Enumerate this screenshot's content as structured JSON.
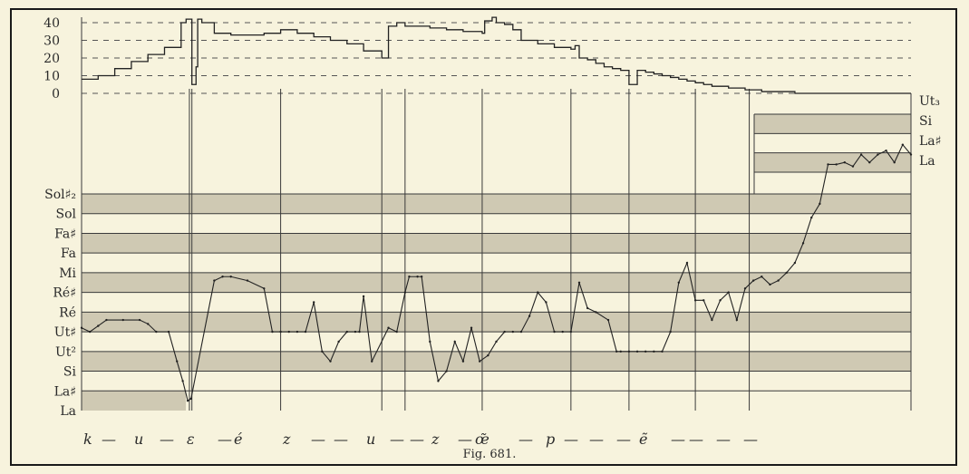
{
  "chart_data": {
    "type": "line",
    "caption": "Fig. 681.",
    "intensity_axis": {
      "ticks": [
        "40",
        "30",
        "20",
        "10",
        "0"
      ]
    },
    "pitch_axis_left": [
      "Sol♯₂",
      "Sol",
      "Fa♯",
      "Fa",
      "Mi",
      "Ré♯",
      "Ré",
      "Ut♯",
      "Ut²",
      "Si",
      "La♯",
      "La"
    ],
    "pitch_axis_right": [
      "Ut₃",
      "Si",
      "La♯",
      "La"
    ],
    "phonemes": [
      "k",
      "—",
      "u",
      "—",
      "ɛ",
      "—",
      "é",
      "z",
      "—",
      "—",
      "u",
      "—",
      "—",
      "z",
      "—",
      "œ̃",
      "—",
      "p",
      "—",
      "—",
      "—",
      "ẽ",
      "—",
      "—",
      "—",
      "—"
    ],
    "segment_boundaries": [
      0.0,
      13.0,
      13.3,
      24.0,
      36.2,
      39.0,
      48.3,
      59.0,
      66.0,
      74.0,
      80.5,
      100.0
    ],
    "intensity_series": {
      "name": "",
      "x": [
        0.0,
        2.0,
        4.0,
        6.0,
        8.0,
        10.0,
        12.0,
        12.6,
        13.0,
        13.3,
        13.8,
        14.0,
        14.5,
        16.0,
        18.0,
        20.0,
        22.0,
        24.0,
        26.0,
        28.0,
        30.0,
        32.0,
        34.0,
        36.2,
        37.0,
        38.0,
        39.0,
        40.0,
        42.0,
        44.0,
        46.0,
        48.3,
        48.6,
        49.5,
        50.0,
        51.0,
        52.0,
        53.0,
        55.0,
        57.0,
        59.0,
        59.5,
        60.0,
        61.0,
        62.0,
        63.0,
        64.0,
        65.0,
        66.0,
        67.0,
        68.0,
        69.0,
        70.0,
        71.0,
        72.0,
        73.0,
        74.0,
        75.0,
        76.0,
        78.0,
        80.0,
        82.0,
        84.0,
        86.0,
        88.0,
        90.0,
        92.0,
        94.0,
        96.0,
        98.0,
        100.0
      ],
      "y": [
        8,
        10,
        14,
        18,
        22,
        26,
        40,
        42,
        42,
        5,
        15,
        42,
        40,
        34,
        33,
        33,
        34,
        36,
        34,
        32,
        30,
        28,
        24,
        20,
        38,
        40,
        38,
        38,
        37,
        36,
        35,
        34,
        41,
        43,
        40,
        39,
        36,
        30,
        28,
        26,
        25,
        27,
        20,
        19,
        17,
        15,
        14,
        13,
        5,
        13,
        12,
        11,
        10,
        9,
        8,
        7,
        6,
        5,
        4,
        3,
        2,
        1,
        1,
        0,
        0,
        0,
        0,
        0,
        0,
        0,
        0
      ]
    },
    "pitch_series": {
      "name": "",
      "x": [
        0.0,
        1.0,
        2.0,
        3.0,
        5.0,
        7.0,
        8.0,
        9.0,
        10.5,
        11.5,
        12.2,
        12.8,
        13.2,
        16.0,
        17.0,
        18.0,
        20.0,
        22.0,
        23.0,
        24.0,
        25.0,
        26.0,
        27.0,
        28.0,
        29.0,
        30.0,
        31.0,
        32.0,
        33.0,
        33.5,
        34.0,
        35.0,
        37.0,
        38.0,
        39.0,
        39.5,
        40.5,
        41.0,
        42.0,
        43.0,
        44.0,
        45.0,
        46.0,
        47.0,
        48.0,
        49.0,
        50.0,
        51.0,
        52.0,
        53.0,
        54.0,
        55.0,
        56.0,
        57.0,
        58.0,
        59.0,
        60.0,
        61.0,
        62.0,
        63.5,
        64.5,
        65.0,
        66.0,
        67.0,
        68.0,
        69.0,
        70.0,
        71.0,
        72.0,
        73.0,
        74.0,
        75.0,
        76.0,
        77.0,
        78.0,
        79.0,
        80.0,
        81.0,
        82.0,
        83.0,
        84.0,
        85.0,
        86.0,
        87.0,
        88.0,
        89.0,
        90.0,
        91.0,
        92.0,
        93.0,
        94.0,
        95.0,
        96.0,
        97.0,
        98.0,
        99.0,
        100.0
      ],
      "y": [
        4.2,
        4.0,
        4.3,
        4.6,
        4.6,
        4.6,
        4.4,
        4.0,
        4.0,
        2.5,
        1.5,
        0.5,
        0.6,
        6.6,
        6.8,
        6.8,
        6.6,
        6.2,
        4.0,
        4.0,
        4.0,
        4.0,
        4.0,
        5.5,
        3.0,
        2.5,
        3.5,
        4.0,
        4.0,
        4.0,
        5.8,
        2.5,
        4.2,
        4.0,
        6.0,
        6.8,
        6.8,
        6.8,
        3.5,
        1.5,
        2.0,
        3.5,
        2.5,
        4.2,
        2.5,
        2.8,
        3.5,
        4.0,
        4.0,
        4.0,
        4.8,
        6.0,
        5.5,
        4.0,
        4.0,
        4.0,
        6.5,
        5.2,
        5.0,
        4.6,
        3.0,
        3.0,
        3.0,
        3.0,
        3.0,
        3.0,
        3.0,
        4.0,
        6.5,
        7.5,
        5.6,
        5.6,
        4.6,
        5.6,
        6.0,
        4.6,
        6.2,
        6.6,
        6.8,
        6.4,
        6.6,
        7.0,
        7.5,
        8.5,
        9.8,
        10.5,
        12.5,
        12.5,
        12.6,
        12.4,
        13.0,
        12.6,
        13.0,
        13.2,
        12.6,
        13.5,
        13.0
      ]
    }
  }
}
